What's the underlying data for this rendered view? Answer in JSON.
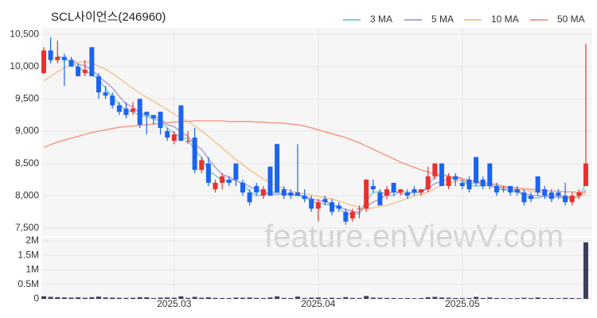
{
  "chart_data": {
    "type": "candlestick",
    "title": "SCL사이언스(246960)",
    "watermark": "feature.enViewV.com",
    "categories": [
      null,
      null,
      null,
      null,
      null,
      null,
      null,
      null,
      null,
      null,
      null,
      null,
      null,
      null,
      null,
      null,
      null,
      null,
      null,
      "2025.03",
      null,
      null,
      null,
      null,
      null,
      null,
      null,
      null,
      null,
      null,
      null,
      null,
      null,
      null,
      null,
      null,
      null,
      null,
      null,
      null,
      "2025.04",
      null,
      null,
      null,
      null,
      null,
      null,
      null,
      null,
      null,
      null,
      null,
      null,
      null,
      null,
      null,
      null,
      null,
      null,
      null,
      null,
      "2025.05",
      null,
      null,
      null,
      null,
      null,
      null,
      null,
      null,
      null,
      null,
      null,
      null,
      null,
      null,
      null,
      null,
      null,
      null
    ],
    "open": [
      9900,
      10250,
      10100,
      10150,
      10100,
      10000,
      9900,
      10300,
      9850,
      9600,
      9550,
      9400,
      9350,
      9300,
      9500,
      9300,
      9250,
      9300,
      9000,
      8850,
      9400,
      8850,
      8900,
      8400,
      8500,
      8100,
      8200,
      8250,
      8500,
      8200,
      8050,
      8150,
      8000,
      8450,
      8800,
      8100,
      8050,
      8050,
      8000,
      7950,
      7800,
      7950,
      7900,
      7850,
      7750,
      7650,
      7800,
      7800,
      8150,
      8050,
      8000,
      8200,
      8050,
      8050,
      8100,
      8050,
      8100,
      8300,
      8500,
      8150,
      8300,
      8200,
      8250,
      8600,
      8250,
      8500,
      8150,
      8100,
      8150,
      8100,
      8050,
      8000,
      8300,
      8100,
      8050,
      8050,
      8000,
      7900,
      8000,
      8150
    ],
    "high": [
      10300,
      10450,
      10400,
      10200,
      10150,
      10050,
      10100,
      10300,
      9900,
      9700,
      9600,
      9450,
      9450,
      9450,
      9500,
      9300,
      9250,
      9300,
      9050,
      9000,
      9400,
      9000,
      9050,
      8600,
      8600,
      8250,
      8350,
      8300,
      8500,
      8250,
      8100,
      8200,
      8150,
      8450,
      8800,
      8150,
      8100,
      8800,
      8100,
      8000,
      7950,
      8000,
      7950,
      7900,
      7800,
      7800,
      7850,
      8250,
      8250,
      8100,
      8150,
      8200,
      8100,
      8100,
      8150,
      8100,
      8450,
      8500,
      8500,
      8350,
      8350,
      8250,
      8300,
      8600,
      8300,
      8500,
      8200,
      8150,
      8150,
      8150,
      8100,
      8050,
      8300,
      8150,
      8100,
      8100,
      8200,
      8050,
      8100,
      10350
    ],
    "low": [
      9880,
      10050,
      10050,
      9700,
      10000,
      9850,
      9850,
      9850,
      9500,
      9500,
      9350,
      9250,
      9200,
      9250,
      9050,
      8950,
      9100,
      8950,
      8850,
      8800,
      8850,
      8800,
      8350,
      8350,
      8150,
      8050,
      8100,
      8150,
      8150,
      8000,
      7850,
      8000,
      7950,
      8000,
      8050,
      7950,
      7950,
      8000,
      7900,
      7750,
      7600,
      7850,
      7700,
      7750,
      7550,
      7600,
      7650,
      7750,
      8050,
      7850,
      7950,
      8000,
      8000,
      7950,
      8000,
      8000,
      8050,
      8250,
      8150,
      8100,
      8150,
      8100,
      8050,
      8150,
      8100,
      8100,
      8000,
      8050,
      8000,
      8000,
      7850,
      7900,
      8000,
      7950,
      7900,
      7950,
      7850,
      7850,
      7950,
      8150
    ],
    "close": [
      10250,
      10100,
      10150,
      10100,
      10000,
      9850,
      9950,
      9850,
      9600,
      9550,
      9400,
      9300,
      9250,
      9350,
      9100,
      9250,
      9200,
      9050,
      8900,
      8950,
      8850,
      8850,
      8400,
      8550,
      8200,
      8200,
      8300,
      8200,
      8250,
      8050,
      7900,
      8050,
      8100,
      8000,
      8050,
      8000,
      8000,
      8000,
      7950,
      7800,
      7900,
      7900,
      7750,
      7800,
      7600,
      7750,
      7800,
      8250,
      8100,
      7850,
      8100,
      8050,
      8100,
      8000,
      8050,
      8100,
      8300,
      8500,
      8150,
      8300,
      8250,
      8150,
      8100,
      8200,
      8150,
      8150,
      8050,
      8100,
      8050,
      8050,
      7900,
      7950,
      8050,
      8000,
      7950,
      8000,
      7900,
      8000,
      8050,
      8500
    ],
    "volume": [
      90000,
      70000,
      60000,
      50000,
      45000,
      55000,
      40000,
      60000,
      80000,
      50000,
      45000,
      40000,
      35000,
      40000,
      60000,
      55000,
      30000,
      45000,
      50000,
      40000,
      90000,
      35000,
      70000,
      40000,
      55000,
      35000,
      30000,
      30000,
      45000,
      40000,
      50000,
      35000,
      30000,
      50000,
      90000,
      35000,
      30000,
      80000,
      30000,
      45000,
      50000,
      30000,
      40000,
      30000,
      60000,
      35000,
      30000,
      100000,
      45000,
      40000,
      35000,
      30000,
      25000,
      30000,
      25000,
      30000,
      60000,
      70000,
      50000,
      40000,
      30000,
      30000,
      30000,
      70000,
      30000,
      50000,
      30000,
      25000,
      25000,
      30000,
      40000,
      30000,
      50000,
      25000,
      30000,
      25000,
      35000,
      30000,
      25000,
      1950000
    ],
    "up_color": "#e8312f",
    "down_color": "#1b64f0",
    "volume_color": "#3b3f5e",
    "series": [
      {
        "name": "3 MA",
        "color": "#7fcfd2",
        "values": [
          null,
          null,
          10167,
          10117,
          10083,
          9983,
          9933,
          9883,
          9800,
          9667,
          9517,
          9417,
          9317,
          9300,
          9233,
          9233,
          9183,
          9167,
          9050,
          8967,
          8900,
          8883,
          8700,
          8600,
          8383,
          8317,
          8233,
          8233,
          8250,
          8167,
          8067,
          8000,
          8017,
          8050,
          8050,
          8017,
          8017,
          8000,
          7983,
          7917,
          7883,
          7867,
          7850,
          7817,
          7717,
          7717,
          7717,
          7933,
          8050,
          8067,
          8017,
          8000,
          8083,
          8050,
          8050,
          8050,
          8150,
          8300,
          8317,
          8317,
          8233,
          8233,
          8167,
          8150,
          8150,
          8167,
          8117,
          8100,
          8067,
          8067,
          8000,
          7967,
          7967,
          8000,
          8000,
          7983,
          7950,
          7967,
          7983,
          8183
        ]
      },
      {
        "name": "5 MA",
        "color": "#b8a0d8",
        "values": [
          null,
          null,
          null,
          null,
          10120,
          10040,
          10010,
          9950,
          9850,
          9760,
          9670,
          9540,
          9420,
          9370,
          9280,
          9250,
          9230,
          9190,
          9100,
          9070,
          8990,
          8920,
          8790,
          8720,
          8570,
          8440,
          8330,
          8290,
          8230,
          8200,
          8140,
          8090,
          8070,
          8020,
          8020,
          8040,
          8030,
          8010,
          8000,
          7950,
          7930,
          7910,
          7860,
          7830,
          7790,
          7760,
          7740,
          7840,
          7900,
          7950,
          8020,
          8070,
          8040,
          8020,
          8060,
          8060,
          8110,
          8190,
          8220,
          8270,
          8300,
          8270,
          8190,
          8200,
          8170,
          8150,
          8130,
          8130,
          8100,
          8080,
          8030,
          8010,
          8000,
          7990,
          7970,
          7990,
          7980,
          7970,
          7980,
          8090
        ]
      },
      {
        "name": "10 MA",
        "color": "#f2c898",
        "values": [
          9780,
          9850,
          9920,
          9980,
          10030,
          10070,
          10080,
          10060,
          10000,
          9960,
          9890,
          9820,
          9740,
          9660,
          9590,
          9520,
          9460,
          9400,
          9330,
          9260,
          9200,
          9150,
          9080,
          9000,
          8920,
          8830,
          8740,
          8650,
          8560,
          8480,
          8400,
          8330,
          8260,
          8200,
          8150,
          8110,
          8070,
          8050,
          8030,
          8010,
          7990,
          7970,
          7950,
          7920,
          7880,
          7850,
          7820,
          7800,
          7810,
          7830,
          7850,
          7880,
          7920,
          7960,
          8000,
          8020,
          8060,
          8110,
          8160,
          8190,
          8220,
          8240,
          8240,
          8230,
          8210,
          8200,
          8180,
          8150,
          8120,
          8100,
          8080,
          8070,
          8050,
          8040,
          8020,
          8010,
          8000,
          7990,
          7990,
          8020
        ]
      },
      {
        "name": "50 MA",
        "color": "#f3a08a",
        "values": [
          8750,
          8790,
          8830,
          8860,
          8890,
          8920,
          8950,
          8980,
          9000,
          9020,
          9040,
          9060,
          9070,
          9080,
          9090,
          9100,
          9110,
          9120,
          9130,
          9140,
          9150,
          9150,
          9160,
          9160,
          9160,
          9160,
          9160,
          9150,
          9150,
          9150,
          9150,
          9140,
          9140,
          9130,
          9130,
          9120,
          9110,
          9100,
          9080,
          9050,
          9020,
          8990,
          8960,
          8930,
          8900,
          8860,
          8820,
          8770,
          8720,
          8670,
          8620,
          8570,
          8520,
          8480,
          8440,
          8400,
          8370,
          8340,
          8320,
          8300,
          8280,
          8260,
          8240,
          8220,
          8200,
          8180,
          8160,
          8150,
          8130,
          8120,
          8110,
          8100,
          8090,
          8080,
          8070,
          8070,
          8060,
          8060,
          8050,
          8050
        ]
      }
    ],
    "ylim": [
      7350,
      10600
    ],
    "yticks": [
      {
        "value": 7500,
        "label": "7,500"
      },
      {
        "value": 8000,
        "label": "8,000"
      },
      {
        "value": 8500,
        "label": "8,500"
      },
      {
        "value": 9000,
        "label": "9,000"
      },
      {
        "value": 9500,
        "label": "9,500"
      },
      {
        "value": 10000,
        "label": "10,000"
      },
      {
        "value": 10500,
        "label": "10,500"
      }
    ],
    "y2lim": [
      0,
      2000000
    ],
    "y2ticks": [
      0,
      {
        "value": 500000,
        "label": "0.5M"
      },
      {
        "value": 1000000,
        "label": "1M"
      },
      {
        "value": 1500000,
        "label": "1.5M"
      },
      {
        "value": 2000000,
        "label": "2M"
      }
    ],
    "grid": true
  }
}
